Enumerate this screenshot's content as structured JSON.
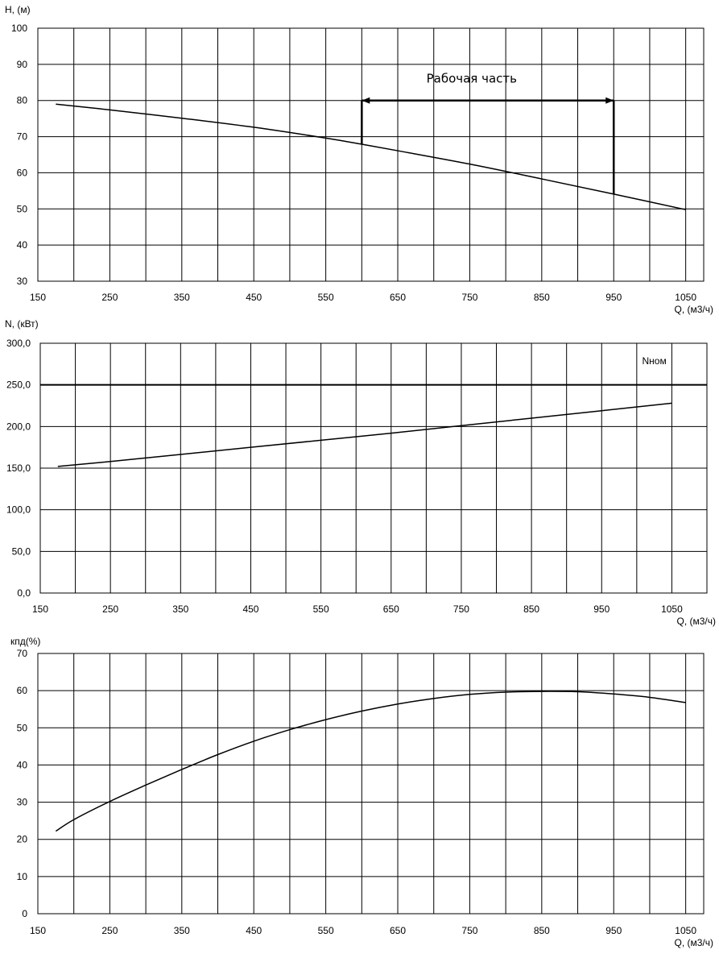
{
  "chart_data": [
    {
      "type": "line",
      "ylabel": "H, (м)",
      "xlabel": "Q, (м3/ч)",
      "xlim": [
        150,
        1075
      ],
      "ylim": [
        30,
        100
      ],
      "x_tick_values": [
        150,
        250,
        350,
        450,
        550,
        650,
        750,
        850,
        950,
        1050
      ],
      "x_tick_labels": [
        "150",
        "250",
        "350",
        "450",
        "550",
        "650",
        "750",
        "850",
        "950",
        "1050"
      ],
      "x_grid_step": 50,
      "y_tick_values": [
        30,
        40,
        50,
        60,
        70,
        80,
        90,
        100
      ],
      "y_tick_labels": [
        "30",
        "40",
        "50",
        "60",
        "70",
        "80",
        "90",
        "100"
      ],
      "grid": true,
      "series": [
        {
          "x": [
            175,
            250,
            350,
            450,
            550,
            600,
            650,
            750,
            850,
            950,
            1050
          ],
          "y": [
            79,
            77.4,
            75.1,
            72.6,
            69.6,
            67.9,
            66.1,
            62.4,
            58.3,
            54.1,
            49.8
          ],
          "color": "#000000"
        }
      ],
      "annotations": [
        {
          "text": "Рабочая часть",
          "type": "bracket",
          "x_from": 600,
          "x_to": 950,
          "y_level": 80,
          "y_from_left": 67.9,
          "y_from_right": 54.1,
          "label_x": 775,
          "label_y": 85
        }
      ]
    },
    {
      "type": "line",
      "ylabel": "N, (кВт)",
      "xlabel": "Q, (м3/ч)",
      "xlim": [
        150,
        1100
      ],
      "ylim": [
        0,
        300
      ],
      "x_tick_values": [
        150,
        250,
        350,
        450,
        550,
        650,
        750,
        850,
        950,
        1050
      ],
      "x_tick_labels": [
        "150",
        "250",
        "350",
        "450",
        "550",
        "650",
        "750",
        "850",
        "950",
        "1050"
      ],
      "x_grid_step": 50,
      "y_tick_values": [
        0,
        50,
        100,
        150,
        200,
        250,
        300
      ],
      "y_tick_labels": [
        "0,0",
        "50,0",
        "100,0",
        "150,0",
        "200,0",
        "250,0",
        "300,0"
      ],
      "grid": true,
      "series": [
        {
          "x": [
            175,
            250,
            350,
            450,
            550,
            650,
            750,
            850,
            950,
            1050
          ],
          "y": [
            152,
            158,
            166.5,
            175,
            183.5,
            192,
            201,
            210,
            219,
            228
          ],
          "color": "#000000"
        }
      ],
      "hlines": [
        {
          "y": 250,
          "label": "Nном",
          "label_x": 1025,
          "label_y": 275
        }
      ]
    },
    {
      "type": "line",
      "ylabel": "кпд(%)",
      "xlabel": "Q, (м3/ч)",
      "xlim": [
        150,
        1075
      ],
      "ylim": [
        0,
        70
      ],
      "x_tick_values": [
        150,
        250,
        350,
        450,
        550,
        650,
        750,
        850,
        950,
        1050
      ],
      "x_tick_labels": [
        "150",
        "250",
        "350",
        "450",
        "550",
        "650",
        "750",
        "850",
        "950",
        "1050"
      ],
      "x_grid_step": 50,
      "y_tick_values": [
        0,
        10,
        20,
        30,
        40,
        50,
        60,
        70
      ],
      "y_tick_labels": [
        "0",
        "10",
        "20",
        "30",
        "40",
        "50",
        "60",
        "70"
      ],
      "grid": true,
      "series": [
        {
          "x": [
            175,
            200,
            250,
            300,
            350,
            400,
            450,
            500,
            550,
            600,
            650,
            700,
            750,
            800,
            850,
            900,
            950,
            1000,
            1050
          ],
          "y": [
            22.2,
            25.3,
            30.2,
            34.6,
            38.8,
            42.8,
            46.4,
            49.5,
            52.2,
            54.5,
            56.4,
            57.9,
            59.0,
            59.6,
            59.8,
            59.7,
            59.1,
            58.2,
            56.8
          ],
          "color": "#000000"
        }
      ]
    }
  ]
}
